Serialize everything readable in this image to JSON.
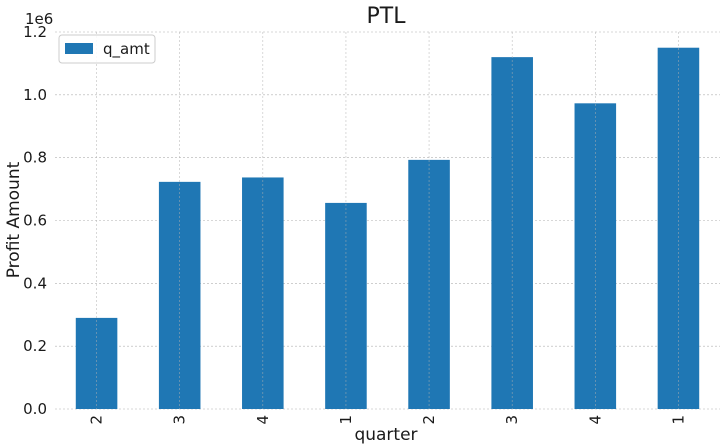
{
  "chart_data": {
    "type": "bar",
    "title": "PTL",
    "xlabel": "quarter",
    "ylabel": "Profit Amount",
    "y_offset_label": "1e6",
    "categories": [
      "2",
      "3",
      "4",
      "1",
      "2",
      "3",
      "4",
      "1"
    ],
    "series": [
      {
        "name": "q_amt",
        "values": [
          290000,
          723000,
          737000,
          656000,
          793000,
          1120000,
          973000,
          1150000
        ]
      }
    ],
    "ylim": [
      0,
      1200000
    ],
    "yticks": [
      0,
      0.2,
      0.4,
      0.6,
      0.8,
      1.0,
      1.2
    ],
    "ytick_labels": [
      "0.0",
      "0.2",
      "0.4",
      "0.6",
      "0.8",
      "1.0",
      "1.2"
    ],
    "ytick_scale": 1000000,
    "grid": true,
    "legend_position": "top-left",
    "colors": {
      "bar": "#1f77b4",
      "grid": "#b0b0b0"
    }
  }
}
